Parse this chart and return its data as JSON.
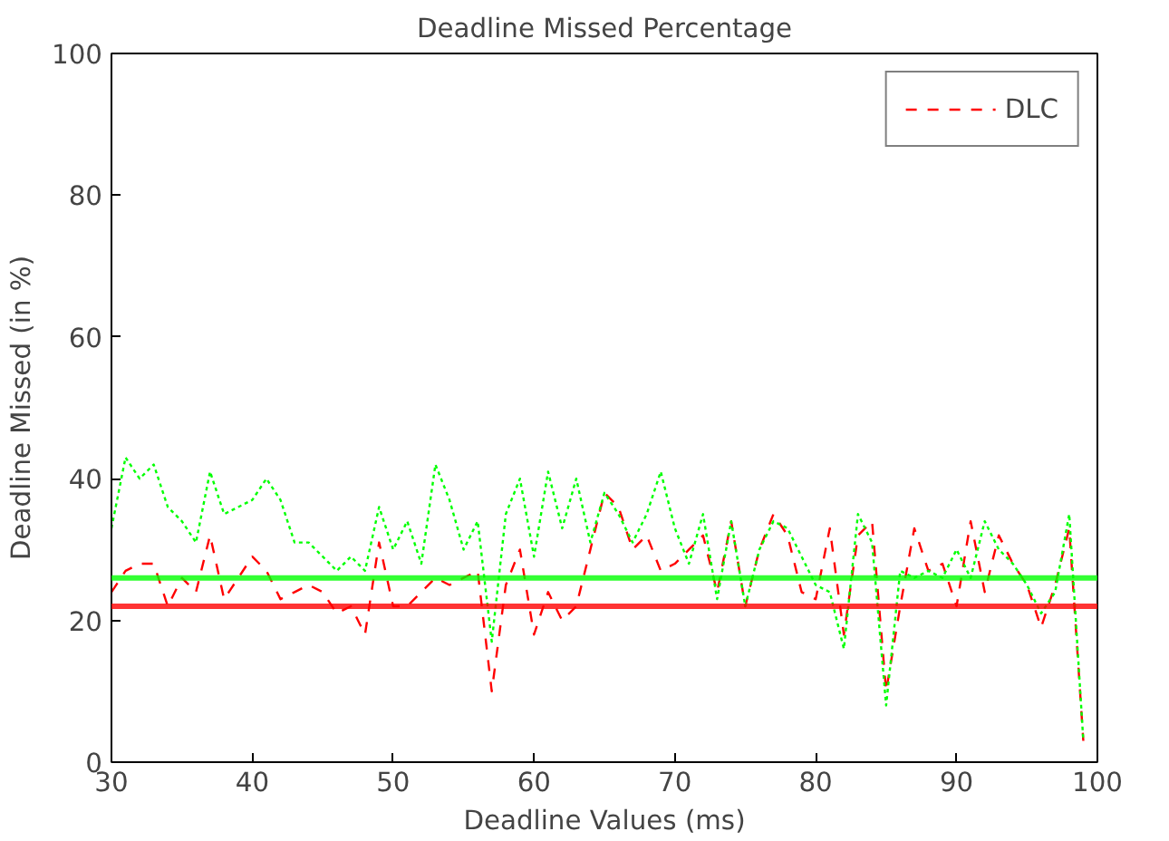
{
  "chart_data": {
    "type": "line",
    "title": "Deadline Missed Percentage",
    "xlabel": "Deadline Values (ms)",
    "ylabel": "Deadline Missed (in %)",
    "x": [
      30,
      31,
      32,
      33,
      34,
      35,
      36,
      37,
      38,
      39,
      40,
      41,
      42,
      43,
      44,
      45,
      46,
      47,
      48,
      49,
      50,
      51,
      52,
      53,
      54,
      55,
      56,
      57,
      58,
      59,
      60,
      61,
      62,
      63,
      64,
      65,
      66,
      67,
      68,
      69,
      70,
      71,
      72,
      73,
      74,
      75,
      76,
      77,
      78,
      79,
      80,
      81,
      82,
      83,
      84,
      85,
      86,
      87,
      88,
      89,
      90,
      91,
      92,
      93,
      94,
      95,
      96,
      97,
      98,
      99
    ],
    "series": [
      {
        "name": "DLC",
        "color": "#ff0000",
        "line_style": "dashed",
        "values": [
          24,
          27,
          28,
          28,
          22,
          26,
          24,
          32,
          23,
          26,
          29,
          27,
          23,
          24,
          25,
          24,
          21,
          22,
          18,
          31,
          22,
          22,
          24,
          26,
          25,
          26,
          27,
          10,
          25,
          30,
          18,
          24,
          20,
          22,
          30,
          38,
          36,
          30,
          32,
          27,
          28,
          30,
          32,
          24,
          34,
          22,
          30,
          35,
          32,
          24,
          23,
          33,
          18,
          32,
          34,
          10,
          22,
          33,
          27,
          28,
          22,
          34,
          24,
          32,
          28,
          25,
          19,
          25,
          33,
          3
        ]
      },
      {
        "color": "#00ff00",
        "line_style": "dotted",
        "values": [
          33,
          43,
          40,
          42,
          36,
          34,
          31,
          41,
          35,
          36,
          37,
          40,
          37,
          31,
          31,
          29,
          27,
          29,
          27,
          36,
          30,
          34,
          28,
          42,
          37,
          30,
          34,
          17,
          35,
          40,
          29,
          41,
          33,
          40,
          31,
          38,
          35,
          31,
          35,
          41,
          33,
          28,
          35,
          23,
          34,
          22,
          30,
          34,
          33,
          29,
          25,
          24,
          16,
          35,
          31,
          8,
          27,
          26,
          27,
          26,
          30,
          26,
          34,
          30,
          28,
          25,
          21,
          24,
          35,
          3
        ]
      }
    ],
    "ref_lines": [
      {
        "axis": "y",
        "value": 26,
        "color": "#00ff00"
      },
      {
        "axis": "y",
        "value": 22,
        "color": "#ff0000"
      }
    ],
    "xlim": [
      30,
      100
    ],
    "ylim": [
      0,
      100
    ],
    "xticks": [
      30,
      40,
      50,
      60,
      70,
      80,
      90,
      100
    ],
    "yticks": [
      0,
      20,
      40,
      60,
      80,
      100
    ],
    "grid": false,
    "legend": "top right",
    "marker": "none"
  }
}
